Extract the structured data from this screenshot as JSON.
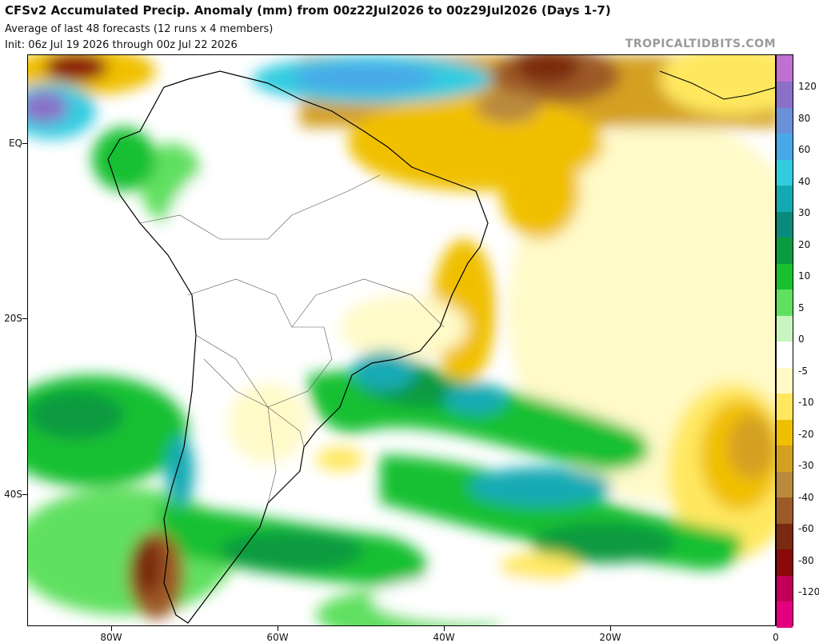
{
  "header": {
    "title": "CFSv2 Accumulated Precip. Anomaly (mm) from 00z22Jul2026 to 00z29Jul2026 (Days 1-7)",
    "subtitle": "Average of last 48 forecasts (12 runs x 4 members)",
    "init": "Init: 06z Jul 19 2026 through 00z Jul 22 2026",
    "brand": "TROPICALTIDBITS.COM"
  },
  "axes": {
    "lat_labels": [
      "EQ",
      "20S",
      "40S"
    ],
    "lon_labels": [
      "80W",
      "60W",
      "40W",
      "20W",
      "0"
    ]
  },
  "colorbar": {
    "labels": [
      "120",
      "80",
      "60",
      "40",
      "30",
      "20",
      "10",
      "5",
      "0",
      "-5",
      "-10",
      "-20",
      "-30",
      "-40",
      "-60",
      "-80",
      "-120"
    ],
    "colors": [
      "#e4007c",
      "#c20058",
      "#8a0a0a",
      "#7a2a10",
      "#9c5a28",
      "#b98a3c",
      "#d4a020",
      "#f0c000",
      "#ffe860",
      "#fffac8",
      "#ffffff",
      "#c8f4c0",
      "#60e060",
      "#18c030",
      "#0a9a40",
      "#0a8a7a",
      "#14aab4",
      "#30cce0",
      "#48a8e8",
      "#6a90d8",
      "#8a70c8",
      "#c070d0"
    ]
  },
  "icons": {
    "map": "precip-anomaly-map"
  }
}
